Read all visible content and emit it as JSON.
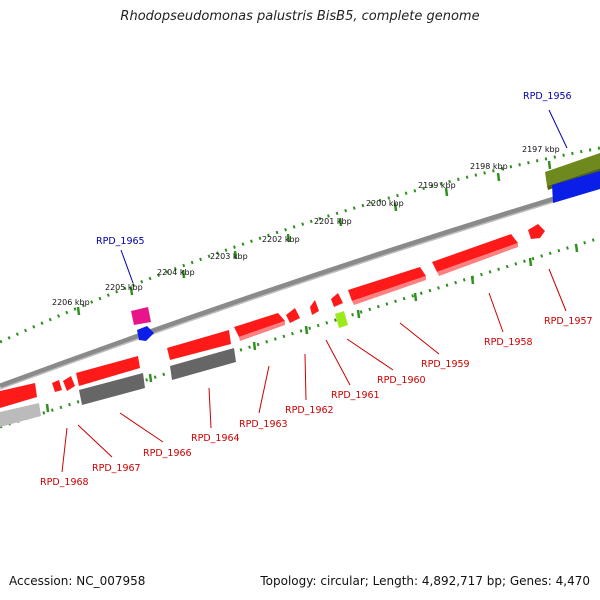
{
  "title": "Rhodopseudomonas palustris BisB5, complete genome",
  "footer": {
    "accession": "Accession: NC_007958",
    "summary": "Topology: circular; Length: 4,892,717 bp; Genes: 4,470"
  },
  "colors": {
    "forward_gene": "#ff1a1a",
    "forward_gene_light": "#ff8080",
    "highlight_pink": "#e8158a",
    "highlight_blue": "#0a1ee8",
    "highlight_green": "#9ee81e",
    "olive_gene": "#6e8a1e",
    "gray_gene": "#666666",
    "light_gray_gene": "#bbbbbb",
    "backbone": "#808080",
    "tick": "#2f8f1f",
    "label_red": "#cc0000",
    "label_blue": "#0000aa"
  },
  "scale": {
    "unit": "kbp",
    "ticks": [
      {
        "label": "2197 kbp"
      },
      {
        "label": "2198 kbp"
      },
      {
        "label": "2199 kbp"
      },
      {
        "label": "2200 kbp"
      },
      {
        "label": "2201 kbp"
      },
      {
        "label": "2202 kbp"
      },
      {
        "label": "2203 kbp"
      },
      {
        "label": "2204 kbp"
      },
      {
        "label": "2205 kbp"
      },
      {
        "label": "2206 kbp"
      }
    ]
  },
  "gene_labels": [
    {
      "name": "RPD_1956",
      "color": "blue"
    },
    {
      "name": "RPD_1957",
      "color": "red"
    },
    {
      "name": "RPD_1958",
      "color": "red"
    },
    {
      "name": "RPD_1959",
      "color": "red"
    },
    {
      "name": "RPD_1960",
      "color": "red"
    },
    {
      "name": "RPD_1961",
      "color": "red"
    },
    {
      "name": "RPD_1962",
      "color": "red"
    },
    {
      "name": "RPD_1963",
      "color": "red"
    },
    {
      "name": "RPD_1964",
      "color": "red"
    },
    {
      "name": "RPD_1965",
      "color": "blue"
    },
    {
      "name": "RPD_1966",
      "color": "red"
    },
    {
      "name": "RPD_1967",
      "color": "red"
    },
    {
      "name": "RPD_1968",
      "color": "red"
    }
  ]
}
